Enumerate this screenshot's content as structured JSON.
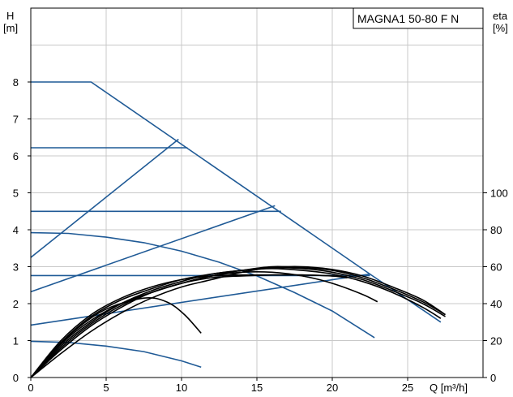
{
  "chart_data": {
    "type": "line",
    "title": "MAGNA1 50-80 F N",
    "y_left_label_top": "H",
    "y_left_label_unit": "[m]",
    "y_right_label_top": "eta",
    "y_right_label_unit": "[%]",
    "xlabel": "Q [m³/h]",
    "xlim": [
      0,
      30
    ],
    "ylim_left": [
      0,
      10
    ],
    "ylim_right_ticks": [
      0,
      20,
      40,
      60,
      80,
      100
    ],
    "x_ticks": [
      "0",
      "5",
      "10",
      "15",
      "20",
      "25"
    ],
    "y_left_ticks": [
      "0",
      "1",
      "2",
      "3",
      "4",
      "5",
      "6",
      "7",
      "8"
    ],
    "y_right_tick_labels": [
      "0",
      "20",
      "40",
      "60",
      "80",
      "100"
    ],
    "grid": true,
    "colors": {
      "head_curves": "#1f5a96",
      "efficiency_curves": "#000000",
      "grid": "#c8c8c8"
    },
    "head_curves": [
      {
        "points": [
          [
            0,
            8.0
          ],
          [
            4.0,
            8.0
          ],
          [
            22.5,
            2.8
          ],
          [
            27.2,
            1.5
          ]
        ]
      },
      {
        "points": [
          [
            0,
            6.22
          ],
          [
            10.4,
            6.22
          ]
        ]
      },
      {
        "points": [
          [
            0,
            4.5
          ],
          [
            16.6,
            4.5
          ]
        ]
      },
      {
        "points": [
          [
            0,
            2.76
          ],
          [
            22.5,
            2.76
          ]
        ]
      },
      {
        "points": [
          [
            0,
            3.25
          ],
          [
            9.8,
            6.45
          ]
        ]
      },
      {
        "points": [
          [
            0,
            2.32
          ],
          [
            16.2,
            4.65
          ]
        ]
      },
      {
        "points": [
          [
            0,
            1.42
          ],
          [
            22.5,
            2.8
          ]
        ]
      },
      {
        "points": [
          [
            0,
            3.92
          ],
          [
            2.5,
            3.9
          ],
          [
            5.0,
            3.8
          ],
          [
            7.5,
            3.65
          ],
          [
            10.0,
            3.42
          ],
          [
            12.5,
            3.12
          ],
          [
            15.0,
            2.75
          ],
          [
            17.5,
            2.3
          ],
          [
            20.0,
            1.8
          ],
          [
            22.8,
            1.08
          ]
        ]
      },
      {
        "points": [
          [
            0,
            0.98
          ],
          [
            2.5,
            0.95
          ],
          [
            5.0,
            0.85
          ],
          [
            7.5,
            0.7
          ],
          [
            10.0,
            0.45
          ],
          [
            11.3,
            0.28
          ]
        ]
      }
    ],
    "efficiency_curves": [
      {
        "points": [
          [
            0,
            0
          ],
          [
            1.5,
            14
          ],
          [
            3.0,
            26
          ],
          [
            5.0,
            37
          ],
          [
            7.5,
            43
          ],
          [
            9.0,
            41
          ],
          [
            10.2,
            34
          ],
          [
            11.3,
            24
          ]
        ]
      },
      {
        "points": [
          [
            0,
            0
          ],
          [
            2.0,
            18
          ],
          [
            4.0,
            31
          ],
          [
            6.0,
            40
          ],
          [
            8.0,
            46
          ],
          [
            10.0,
            51
          ],
          [
            12.0,
            55
          ],
          [
            14.0,
            57
          ],
          [
            16.0,
            57
          ],
          [
            18.0,
            55
          ],
          [
            20.0,
            51
          ],
          [
            22.0,
            45
          ],
          [
            23.0,
            41
          ]
        ]
      },
      {
        "points": [
          [
            0,
            0
          ],
          [
            2.0,
            19
          ],
          [
            4.0,
            33
          ],
          [
            6.0,
            42
          ],
          [
            8.0,
            48
          ],
          [
            10.0,
            53
          ],
          [
            12.0,
            56
          ],
          [
            14.0,
            58
          ],
          [
            16.0,
            59
          ],
          [
            18.0,
            58
          ],
          [
            20.0,
            56
          ],
          [
            22.0,
            52
          ],
          [
            24.0,
            46
          ],
          [
            26.0,
            38
          ],
          [
            27.2,
            32
          ]
        ]
      },
      {
        "points": [
          [
            0,
            0
          ],
          [
            2.0,
            17
          ],
          [
            4.0,
            30
          ],
          [
            6.0,
            40
          ],
          [
            8.0,
            47
          ],
          [
            10.0,
            52
          ],
          [
            12.0,
            56
          ],
          [
            14.0,
            58
          ],
          [
            16.0,
            59.5
          ],
          [
            18.0,
            59
          ],
          [
            20.0,
            57
          ],
          [
            22.0,
            53
          ],
          [
            24.0,
            47
          ],
          [
            26.0,
            40
          ],
          [
            27.5,
            33
          ]
        ]
      },
      {
        "points": [
          [
            0,
            0
          ],
          [
            2.0,
            15
          ],
          [
            4.0,
            28
          ],
          [
            6.0,
            38
          ],
          [
            8.0,
            46
          ],
          [
            10.0,
            51
          ],
          [
            12.0,
            55
          ],
          [
            14.0,
            58
          ],
          [
            16.0,
            60
          ],
          [
            18.0,
            59.5
          ],
          [
            20.0,
            58
          ],
          [
            22.0,
            54
          ],
          [
            24.0,
            48
          ],
          [
            26.0,
            41
          ],
          [
            27.5,
            34
          ]
        ]
      },
      {
        "points": [
          [
            0,
            0
          ],
          [
            2.0,
            13
          ],
          [
            4.0,
            25
          ],
          [
            6.0,
            35
          ],
          [
            8.0,
            43
          ],
          [
            10.0,
            49
          ],
          [
            12.0,
            53
          ],
          [
            14.0,
            57
          ],
          [
            16.0,
            59.5
          ],
          [
            18.0,
            60
          ],
          [
            20.0,
            58.5
          ],
          [
            22.0,
            55
          ],
          [
            24.0,
            49
          ],
          [
            26.0,
            42
          ],
          [
            27.5,
            34
          ]
        ]
      },
      {
        "points": [
          [
            0,
            0
          ],
          [
            2.0,
            16
          ],
          [
            4.0,
            29
          ],
          [
            6.0,
            39
          ],
          [
            8.0,
            46
          ],
          [
            10.0,
            51
          ],
          [
            12.0,
            54
          ],
          [
            14.0,
            55
          ],
          [
            16.0,
            55.5
          ],
          [
            18.0,
            55.5
          ],
          [
            20.0,
            55
          ],
          [
            21.0,
            54
          ]
        ]
      },
      {
        "points": [
          [
            0,
            0
          ],
          [
            2.0,
            20
          ],
          [
            4.0,
            34
          ],
          [
            6.0,
            43
          ],
          [
            8.0,
            49
          ],
          [
            10.0,
            53
          ],
          [
            12.0,
            55
          ],
          [
            14.0,
            55.5
          ],
          [
            16.0,
            55.5
          ],
          [
            18.0,
            55.5
          ],
          [
            20.0,
            55
          ],
          [
            21.0,
            54.5
          ]
        ]
      }
    ]
  }
}
